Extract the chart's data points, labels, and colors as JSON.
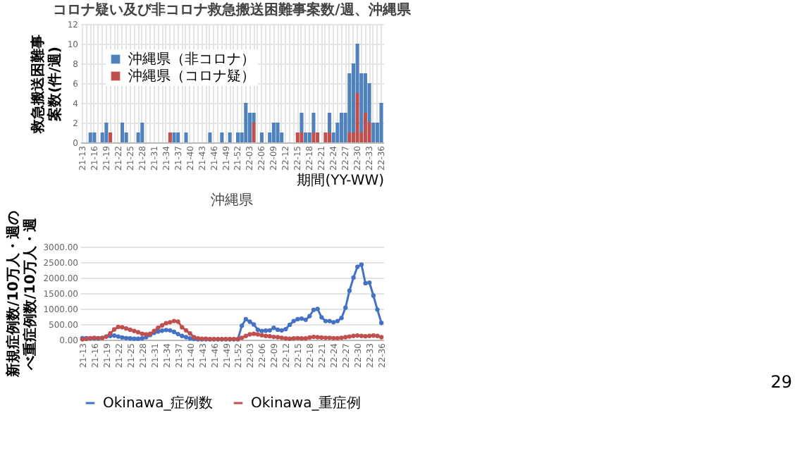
{
  "chart_data": [
    {
      "type": "bar",
      "title": "コロナ疑い及び非コロナ救急搬送困難事案数/週、沖縄県",
      "xlabel": "期間(YY-WW)",
      "ylabel": "救急搬送困難事案数(件/週)",
      "categories": [
        "21-13",
        null,
        null,
        "21-16",
        null,
        null,
        "21-19",
        null,
        null,
        "21-22",
        null,
        null,
        "21-25",
        null,
        null,
        "21-28",
        null,
        null,
        "21-31",
        null,
        null,
        "21-34",
        null,
        null,
        "21-37",
        null,
        null,
        "21-40",
        null,
        null,
        "21-43",
        null,
        null,
        "21-46",
        null,
        null,
        "21-49",
        null,
        null,
        "21-52",
        null,
        null,
        "22-03",
        null,
        null,
        "22-06",
        null,
        null,
        "22-09",
        null,
        null,
        "22-12",
        null,
        null,
        "22-15",
        null,
        null,
        "22-18",
        null,
        null,
        "22-21",
        null,
        null,
        "22-24",
        null,
        null,
        "22-27",
        null,
        null,
        "22-30",
        null,
        null,
        "22-33",
        null,
        null,
        "22-36"
      ],
      "stacked": true,
      "ylim": [
        0,
        12
      ],
      "yticks": [
        0,
        2,
        4,
        6,
        8,
        10,
        12
      ],
      "grid": true,
      "legend": "top left",
      "series": [
        {
          "name": "沖縄県（コロナ疑）",
          "color": "#c0504d",
          "values": [
            0,
            0,
            0,
            0,
            0,
            0,
            0,
            1,
            0,
            0,
            0,
            0,
            0,
            0,
            0,
            0,
            0,
            0,
            0,
            0,
            0,
            0,
            1,
            0,
            0,
            0,
            0,
            0,
            0,
            0,
            0,
            0,
            0,
            0,
            0,
            0,
            0,
            0,
            0,
            0,
            0,
            0,
            0,
            2,
            0,
            0,
            0,
            0,
            0,
            0,
            0,
            0,
            0,
            0,
            1,
            1,
            0,
            0,
            1,
            1,
            0,
            1,
            1,
            0,
            0,
            0,
            0,
            1,
            1,
            5,
            1,
            3,
            2,
            0,
            0,
            0
          ]
        },
        {
          "name": "沖縄県（非コロナ）",
          "color": "#4f81bd",
          "values": [
            0,
            0,
            1,
            1,
            0,
            1,
            2,
            0,
            0,
            0,
            2,
            1,
            0,
            0,
            1,
            2,
            0,
            0,
            0,
            0,
            0,
            0,
            0,
            1,
            1,
            0,
            1,
            0,
            0,
            0,
            0,
            0,
            1,
            0,
            0,
            1,
            0,
            1,
            0,
            1,
            1,
            4,
            3,
            1,
            0,
            1,
            0,
            1,
            2,
            2,
            1,
            0,
            0,
            0,
            0,
            2,
            1,
            1,
            2,
            0,
            0,
            0,
            2,
            1,
            2,
            3,
            3,
            6,
            7,
            5,
            6,
            4,
            4,
            2,
            2,
            4
          ]
        }
      ]
    },
    {
      "type": "line",
      "title": "沖縄県",
      "ylabel": "新規症例数/10万人・週のべ重症例数/10万人・週",
      "categories": [
        "21-13",
        null,
        null,
        "21-16",
        null,
        null,
        "21-19",
        null,
        null,
        "21-22",
        null,
        null,
        "21-25",
        null,
        null,
        "21-28",
        null,
        null,
        "21-31",
        null,
        null,
        "21-34",
        null,
        null,
        "21-37",
        null,
        null,
        "21-40",
        null,
        null,
        "21-43",
        null,
        null,
        "21-46",
        null,
        null,
        "21-49",
        null,
        null,
        "21-52",
        null,
        null,
        "22-03",
        null,
        null,
        "22-06",
        null,
        null,
        "22-09",
        null,
        null,
        "22-12",
        null,
        null,
        "22-15",
        null,
        null,
        "22-18",
        null,
        null,
        "22-21",
        null,
        null,
        "22-24",
        null,
        null,
        "22-27",
        null,
        null,
        "22-30",
        null,
        null,
        "22-33",
        null,
        null,
        "22-36"
      ],
      "ylim": [
        0,
        3000
      ],
      "yticks": [
        {
          "value": 0,
          "label": "0.00"
        },
        {
          "value": 500,
          "label": "500.00"
        },
        {
          "value": 1000,
          "label": "1000.00"
        },
        {
          "value": 1500,
          "label": "1500.00"
        },
        {
          "value": 2000,
          "label": "2000.00"
        },
        {
          "value": 2500,
          "label": "2500.00"
        },
        {
          "value": 3000,
          "label": "3000.00"
        }
      ],
      "grid": "y",
      "legend": "bottom",
      "marker": "circle",
      "line_style": "solid",
      "annotations": [
        "29"
      ],
      "series": [
        {
          "name": "Okinawa_症例数",
          "color": "#4472c4",
          "values": [
            50,
            50,
            40,
            40,
            40,
            60,
            100,
            120,
            130,
            100,
            70,
            50,
            40,
            30,
            30,
            40,
            80,
            150,
            220,
            260,
            290,
            310,
            300,
            250,
            180,
            120,
            80,
            40,
            20,
            10,
            10,
            10,
            10,
            10,
            10,
            10,
            10,
            10,
            10,
            10,
            450,
            660,
            580,
            490,
            320,
            280,
            290,
            300,
            380,
            320,
            300,
            340,
            480,
            600,
            660,
            680,
            640,
            760,
            960,
            990,
            720,
            600,
            600,
            560,
            600,
            700,
            1030,
            1580,
            2000,
            2350,
            2420,
            1820,
            1840,
            1420,
            970,
            540
          ]
        },
        {
          "name": "Okinawa_重症例",
          "color": "#c0504d",
          "values": [
            10,
            20,
            50,
            60,
            50,
            50,
            100,
            200,
            330,
            410,
            400,
            360,
            320,
            280,
            240,
            190,
            170,
            190,
            280,
            380,
            460,
            530,
            560,
            600,
            580,
            400,
            300,
            200,
            80,
            40,
            30,
            30,
            20,
            20,
            20,
            20,
            20,
            20,
            20,
            20,
            60,
            120,
            170,
            190,
            170,
            140,
            120,
            110,
            90,
            80,
            60,
            40,
            30,
            40,
            50,
            40,
            40,
            70,
            90,
            80,
            70,
            60,
            60,
            50,
            50,
            60,
            80,
            100,
            120,
            130,
            120,
            110,
            120,
            130,
            120,
            80
          ]
        }
      ]
    }
  ]
}
